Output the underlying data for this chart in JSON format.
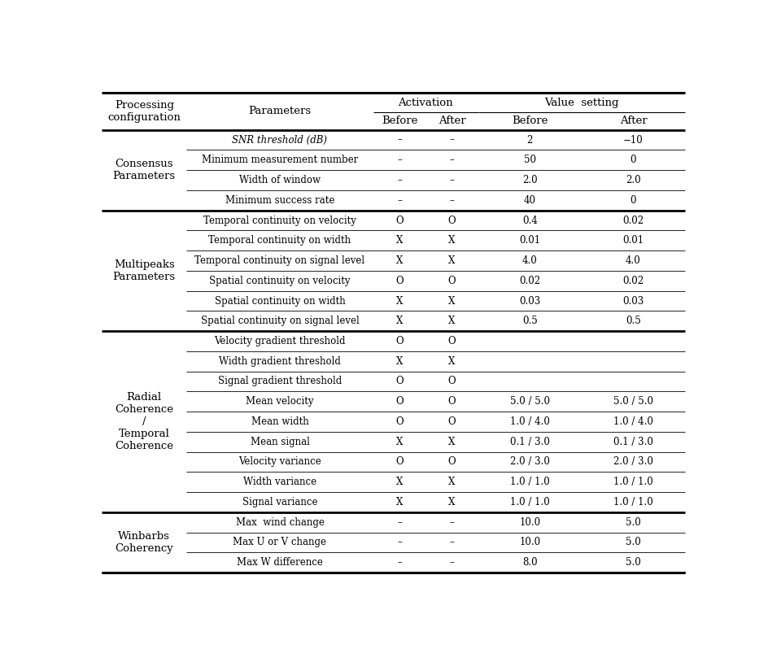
{
  "sections": [
    {
      "group_label": "Consensus\nParameters",
      "rows": [
        {
          "param": "SNR threshold (dB)",
          "snr": true,
          "act_before": "–",
          "act_after": "–",
          "val_before": "2",
          "val_after": "−10"
        },
        {
          "param": "Minimum measurement number",
          "snr": false,
          "act_before": "–",
          "act_after": "–",
          "val_before": "50",
          "val_after": "0"
        },
        {
          "param": "Width of window",
          "snr": false,
          "act_before": "–",
          "act_after": "–",
          "val_before": "2.0",
          "val_after": "2.0"
        },
        {
          "param": "Minimum success rate",
          "snr": false,
          "act_before": "–",
          "act_after": "–",
          "val_before": "40",
          "val_after": "0"
        }
      ]
    },
    {
      "group_label": "Multipeaks\nParameters",
      "rows": [
        {
          "param": "Temporal continuity on velocity",
          "snr": false,
          "act_before": "O",
          "act_after": "O",
          "val_before": "0.4",
          "val_after": "0.02"
        },
        {
          "param": "Temporal continuity on width",
          "snr": false,
          "act_before": "X",
          "act_after": "X",
          "val_before": "0.01",
          "val_after": "0.01"
        },
        {
          "param": "Temporal continuity on signal level",
          "snr": false,
          "act_before": "X",
          "act_after": "X",
          "val_before": "4.0",
          "val_after": "4.0"
        },
        {
          "param": "Spatial continuity on velocity",
          "snr": false,
          "act_before": "O",
          "act_after": "O",
          "val_before": "0.02",
          "val_after": "0.02"
        },
        {
          "param": "Spatial continuity on width",
          "snr": false,
          "act_before": "X",
          "act_after": "X",
          "val_before": "0.03",
          "val_after": "0.03"
        },
        {
          "param": "Spatial continuity on signal level",
          "snr": false,
          "act_before": "X",
          "act_after": "X",
          "val_before": "0.5",
          "val_after": "0.5"
        }
      ]
    },
    {
      "group_label": "Radial\nCoherence\n/\nTemporal\nCoherence",
      "rows": [
        {
          "param": "Velocity gradient threshold",
          "snr": false,
          "act_before": "O",
          "act_after": "O",
          "val_before": "",
          "val_after": ""
        },
        {
          "param": "Width gradient threshold",
          "snr": false,
          "act_before": "X",
          "act_after": "X",
          "val_before": "",
          "val_after": ""
        },
        {
          "param": "Signal gradient threshold",
          "snr": false,
          "act_before": "O",
          "act_after": "O",
          "val_before": "",
          "val_after": ""
        },
        {
          "param": "Mean velocity",
          "snr": false,
          "act_before": "O",
          "act_after": "O",
          "val_before": "5.0 / 5.0",
          "val_after": "5.0 / 5.0"
        },
        {
          "param": "Mean width",
          "snr": false,
          "act_before": "O",
          "act_after": "O",
          "val_before": "1.0 / 4.0",
          "val_after": "1.0 / 4.0"
        },
        {
          "param": "Mean signal",
          "snr": false,
          "act_before": "X",
          "act_after": "X",
          "val_before": "0.1 / 3.0",
          "val_after": "0.1 / 3.0"
        },
        {
          "param": "Velocity variance",
          "snr": false,
          "act_before": "O",
          "act_after": "O",
          "val_before": "2.0 / 3.0",
          "val_after": "2.0 / 3.0"
        },
        {
          "param": "Width variance",
          "snr": false,
          "act_before": "X",
          "act_after": "X",
          "val_before": "1.0 / 1.0",
          "val_after": "1.0 / 1.0"
        },
        {
          "param": "Signal variance",
          "snr": false,
          "act_before": "X",
          "act_after": "X",
          "val_before": "1.0 / 1.0",
          "val_after": "1.0 / 1.0"
        }
      ]
    },
    {
      "group_label": "Winbarbs\nCoherency",
      "rows": [
        {
          "param": "Max  wind change",
          "snr": false,
          "act_before": "–",
          "act_after": "–",
          "val_before": "10.0",
          "val_after": "5.0"
        },
        {
          "param": "Max U or V change",
          "snr": false,
          "act_before": "–",
          "act_after": "–",
          "val_before": "10.0",
          "val_after": "5.0"
        },
        {
          "param": "Max W difference",
          "snr": false,
          "act_before": "–",
          "act_after": "–",
          "val_before": "8.0",
          "val_after": "5.0"
        }
      ]
    }
  ],
  "background_color": "#ffffff",
  "text_color": "#000000"
}
